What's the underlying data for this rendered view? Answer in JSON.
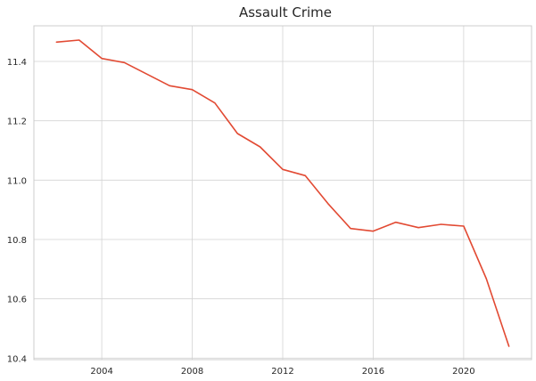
{
  "chart_data": {
    "type": "line",
    "title": "Assault Crime",
    "xlabel": "",
    "ylabel": "",
    "x": [
      2002,
      2003,
      2004,
      2005,
      2006,
      2007,
      2008,
      2009,
      2010,
      2011,
      2012,
      2013,
      2014,
      2015,
      2016,
      2017,
      2018,
      2019,
      2020,
      2021,
      2022
    ],
    "series": [
      {
        "values": [
          11.465,
          11.472,
          11.41,
          11.396,
          11.357,
          11.318,
          11.305,
          11.26,
          11.157,
          11.112,
          11.036,
          11.015,
          10.921,
          10.837,
          10.828,
          10.858,
          10.84,
          10.851,
          10.845,
          10.668,
          10.44
        ],
        "color": "#e24a33"
      }
    ],
    "xticks": [
      2004,
      2008,
      2012,
      2016,
      2020
    ],
    "xtick_labels": [
      "2004",
      "2008",
      "2012",
      "2016",
      "2020"
    ],
    "yticks": [
      10.4,
      10.6,
      10.8,
      11.0,
      11.2,
      11.4
    ],
    "ytick_labels": [
      "10.4",
      "10.6",
      "10.8",
      "11.0",
      "11.2",
      "11.4"
    ],
    "xlim": [
      2001,
      2023
    ],
    "ylim": [
      10.395,
      11.52
    ],
    "grid": true,
    "legend": "none",
    "style": {
      "background": "#ffffff",
      "grid_color": "#d3d3d3",
      "frame_color": "#cccccc",
      "text_color": "#262626"
    }
  }
}
